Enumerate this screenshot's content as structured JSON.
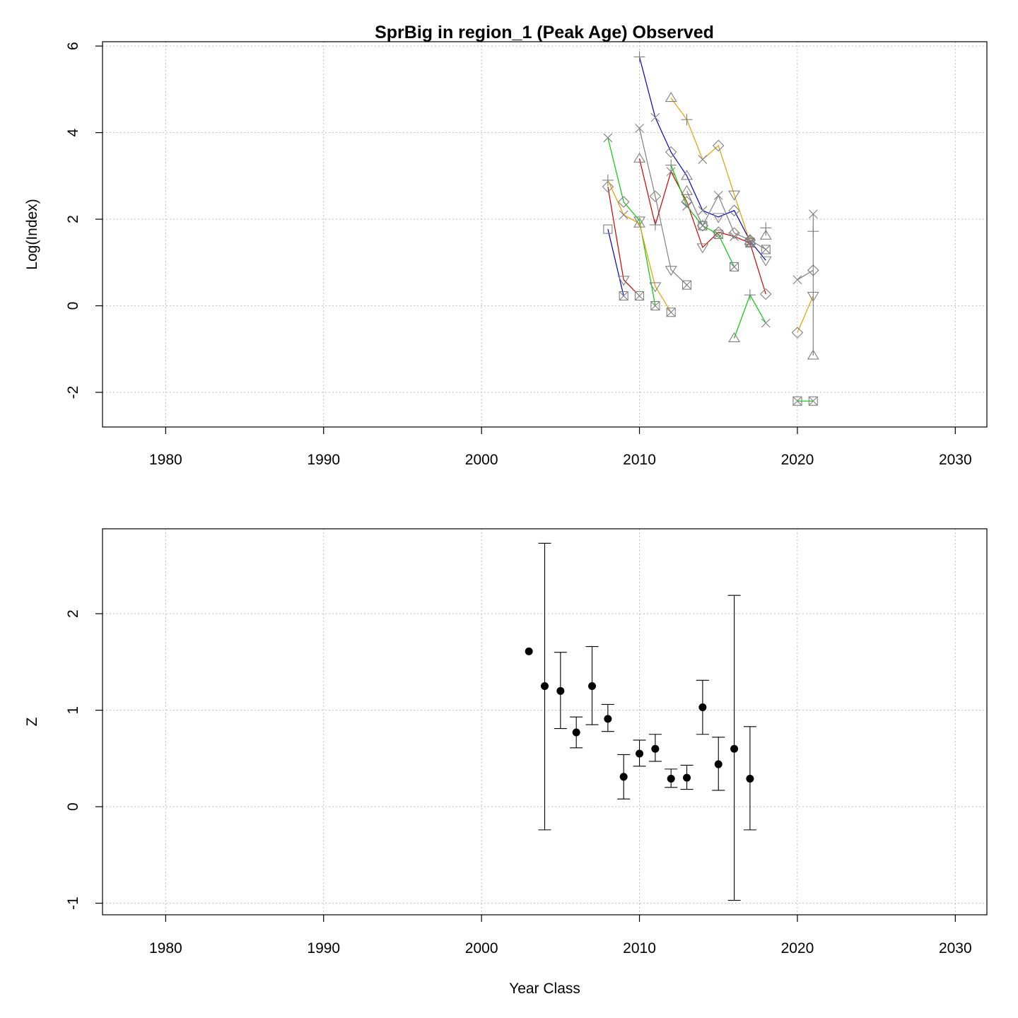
{
  "chart_data": [
    {
      "type": "line",
      "title": "SprBig in region_1 (Peak Age) Observed",
      "xlabel": "",
      "ylabel": "Log(Index)",
      "xlim": [
        1976,
        2032
      ],
      "ylim": [
        -2.8,
        6.1
      ],
      "x_ticks": [
        "1980",
        "1990",
        "2000",
        "2010",
        "2020",
        "2030"
      ],
      "y_ticks": [
        "-2",
        "0",
        "2",
        "4",
        "6"
      ],
      "grid": true,
      "legend": "none",
      "series": [
        {
          "color": "#0000cc",
          "points": [
            {
              "x": 2008,
              "y": 1.77,
              "m": "square"
            },
            {
              "x": 2009,
              "y": 0.23,
              "m": "boxx"
            }
          ]
        },
        {
          "color": "#cc0000",
          "points": [
            {
              "x": 2008,
              "y": 2.75,
              "m": "diamond"
            },
            {
              "x": 2009,
              "y": 0.6,
              "m": "tridown"
            },
            {
              "x": 2010,
              "y": 0.23,
              "m": "boxx"
            }
          ]
        },
        {
          "color": "#00cc00",
          "points": [
            {
              "x": 2008,
              "y": 3.88,
              "m": "cross"
            },
            {
              "x": 2009,
              "y": 2.4,
              "m": "diamond"
            },
            {
              "x": 2010,
              "y": 1.97,
              "m": "tridown"
            },
            {
              "x": 2011,
              "y": 0.0,
              "m": "boxx"
            }
          ]
        },
        {
          "color": "#e69f00",
          "points": [
            {
              "x": 2008,
              "y": 2.9,
              "m": "plus"
            },
            {
              "x": 2009,
              "y": 2.1,
              "m": "x"
            },
            {
              "x": 2010,
              "y": 1.9,
              "m": "triup"
            },
            {
              "x": 2011,
              "y": 0.45,
              "m": "tridown"
            },
            {
              "x": 2012,
              "y": -0.15,
              "m": "boxx"
            }
          ]
        },
        {
          "color": "#808080",
          "points": [
            {
              "x": 2010,
              "y": 4.1,
              "m": "cross"
            },
            {
              "x": 2011,
              "y": 2.53,
              "m": "diamond"
            },
            {
              "x": 2012,
              "y": 0.83,
              "m": "tridown"
            },
            {
              "x": 2013,
              "y": 0.48,
              "m": "boxx"
            }
          ]
        },
        {
          "color": "#0000cc",
          "points": [
            {
              "x": 2010,
              "y": 5.75,
              "m": "plus"
            },
            {
              "x": 2011,
              "y": 4.35,
              "m": "x"
            },
            {
              "x": 2012,
              "y": 3.55,
              "m": "diamond"
            },
            {
              "x": 2013,
              "y": 3.0,
              "m": "triup"
            },
            {
              "x": 2014,
              "y": 2.2,
              "m": "x"
            },
            {
              "x": 2015,
              "y": 2.05,
              "m": "tridown"
            },
            {
              "x": 2016,
              "y": 2.2,
              "m": "diamond"
            },
            {
              "x": 2017,
              "y": 1.5,
              "m": "triup"
            },
            {
              "x": 2018,
              "y": 1.05,
              "m": "tridown"
            }
          ]
        },
        {
          "color": "#cc0000",
          "points": [
            {
              "x": 2010,
              "y": 3.4,
              "m": "triup"
            },
            {
              "x": 2011,
              "y": 1.87,
              "m": "plus"
            },
            {
              "x": 2012,
              "y": 3.1,
              "m": "x"
            },
            {
              "x": 2013,
              "y": 2.4,
              "m": "diamond"
            },
            {
              "x": 2014,
              "y": 1.35,
              "m": "tridown"
            },
            {
              "x": 2015,
              "y": 1.7,
              "m": "diamond"
            },
            {
              "x": 2016,
              "y": 1.6,
              "m": "x"
            },
            {
              "x": 2017,
              "y": 1.45,
              "m": "boxx"
            },
            {
              "x": 2018,
              "y": 0.27,
              "m": "diamond"
            }
          ]
        },
        {
          "color": "#00cc00",
          "points": [
            {
              "x": 2012,
              "y": 3.25,
              "m": "plus"
            },
            {
              "x": 2013,
              "y": 2.3,
              "m": "x"
            },
            {
              "x": 2014,
              "y": 1.85,
              "m": "diamond"
            },
            {
              "x": 2015,
              "y": 1.65,
              "m": "boxx"
            },
            {
              "x": 2016,
              "y": 0.9,
              "m": "boxx"
            }
          ]
        },
        {
          "color": "#e69f00",
          "points": [
            {
              "x": 2012,
              "y": 4.8,
              "m": "triup"
            },
            {
              "x": 2013,
              "y": 4.3,
              "m": "plus"
            },
            {
              "x": 2014,
              "y": 3.38,
              "m": "x"
            },
            {
              "x": 2015,
              "y": 3.7,
              "m": "diamond"
            },
            {
              "x": 2016,
              "y": 2.57,
              "m": "tridown"
            },
            {
              "x": 2017,
              "y": 1.47,
              "m": "boxx"
            }
          ]
        },
        {
          "color": "#808080",
          "points": [
            {
              "x": 2013,
              "y": 2.65,
              "m": "triup"
            },
            {
              "x": 2014,
              "y": 1.85,
              "m": "boxx"
            },
            {
              "x": 2015,
              "y": 2.55,
              "m": "x"
            },
            {
              "x": 2016,
              "y": 1.68,
              "m": "diamond"
            },
            {
              "x": 2017,
              "y": 1.52,
              "m": "diamond"
            },
            {
              "x": 2018,
              "y": 1.3,
              "m": "boxx"
            }
          ]
        },
        {
          "color": "#00cc00",
          "points": [
            {
              "x": 2016,
              "y": -0.75,
              "m": "triup"
            },
            {
              "x": 2017,
              "y": 0.25,
              "m": "plus"
            },
            {
              "x": 2018,
              "y": -0.4,
              "m": "x"
            }
          ]
        },
        {
          "color": "#808080",
          "points": [
            {
              "x": 2018,
              "y": 1.8,
              "m": "plus"
            },
            {
              "x": 2018,
              "y": 1.62,
              "m": "triup"
            }
          ]
        },
        {
          "color": "#808080",
          "points": [
            {
              "x": 2020,
              "y": 0.6,
              "m": "x"
            },
            {
              "x": 2021,
              "y": 0.82,
              "m": "diamond"
            }
          ]
        },
        {
          "color": "#e69f00",
          "points": [
            {
              "x": 2020,
              "y": -0.62,
              "m": "diamond"
            },
            {
              "x": 2021,
              "y": 0.23,
              "m": "tridown"
            }
          ]
        },
        {
          "color": "#00cc00",
          "points": [
            {
              "x": 2020,
              "y": -2.2,
              "m": "boxx"
            },
            {
              "x": 2021,
              "y": -2.2,
              "m": "boxx"
            }
          ]
        },
        {
          "color": "#808080",
          "points": [
            {
              "x": 2021,
              "y": 2.12,
              "m": "x"
            },
            {
              "x": 2021,
              "y": 1.72,
              "m": "plus"
            },
            {
              "x": 2021,
              "y": -1.15,
              "m": "triup"
            }
          ]
        }
      ]
    },
    {
      "type": "scatter",
      "title": "",
      "xlabel": "Year Class",
      "ylabel": "Z",
      "xlim": [
        1976,
        2032
      ],
      "ylim": [
        -1.12,
        2.88
      ],
      "x_ticks": [
        "1980",
        "1990",
        "2000",
        "2010",
        "2020",
        "2030"
      ],
      "y_ticks": [
        "-1",
        "0",
        "1",
        "2"
      ],
      "grid": true,
      "legend": "none",
      "points": [
        {
          "x": 2003,
          "y": 1.61
        },
        {
          "x": 2004,
          "y": 1.25,
          "lo": -0.24,
          "hi": 2.73
        },
        {
          "x": 2005,
          "y": 1.2,
          "lo": 0.81,
          "hi": 1.6
        },
        {
          "x": 2006,
          "y": 0.77,
          "lo": 0.61,
          "hi": 0.93
        },
        {
          "x": 2007,
          "y": 1.25,
          "lo": 0.85,
          "hi": 1.66
        },
        {
          "x": 2008,
          "y": 0.91,
          "lo": 0.78,
          "hi": 1.06
        },
        {
          "x": 2009,
          "y": 0.31,
          "lo": 0.08,
          "hi": 0.54
        },
        {
          "x": 2010,
          "y": 0.55,
          "lo": 0.42,
          "hi": 0.69
        },
        {
          "x": 2011,
          "y": 0.6,
          "lo": 0.47,
          "hi": 0.75
        },
        {
          "x": 2012,
          "y": 0.29,
          "lo": 0.2,
          "hi": 0.39
        },
        {
          "x": 2013,
          "y": 0.3,
          "lo": 0.18,
          "hi": 0.43
        },
        {
          "x": 2014,
          "y": 1.03,
          "lo": 0.75,
          "hi": 1.31
        },
        {
          "x": 2015,
          "y": 0.44,
          "lo": 0.17,
          "hi": 0.72
        },
        {
          "x": 2016,
          "y": 0.6,
          "lo": -0.97,
          "hi": 2.19
        },
        {
          "x": 2017,
          "y": 0.29,
          "lo": -0.24,
          "hi": 0.83
        }
      ]
    }
  ]
}
